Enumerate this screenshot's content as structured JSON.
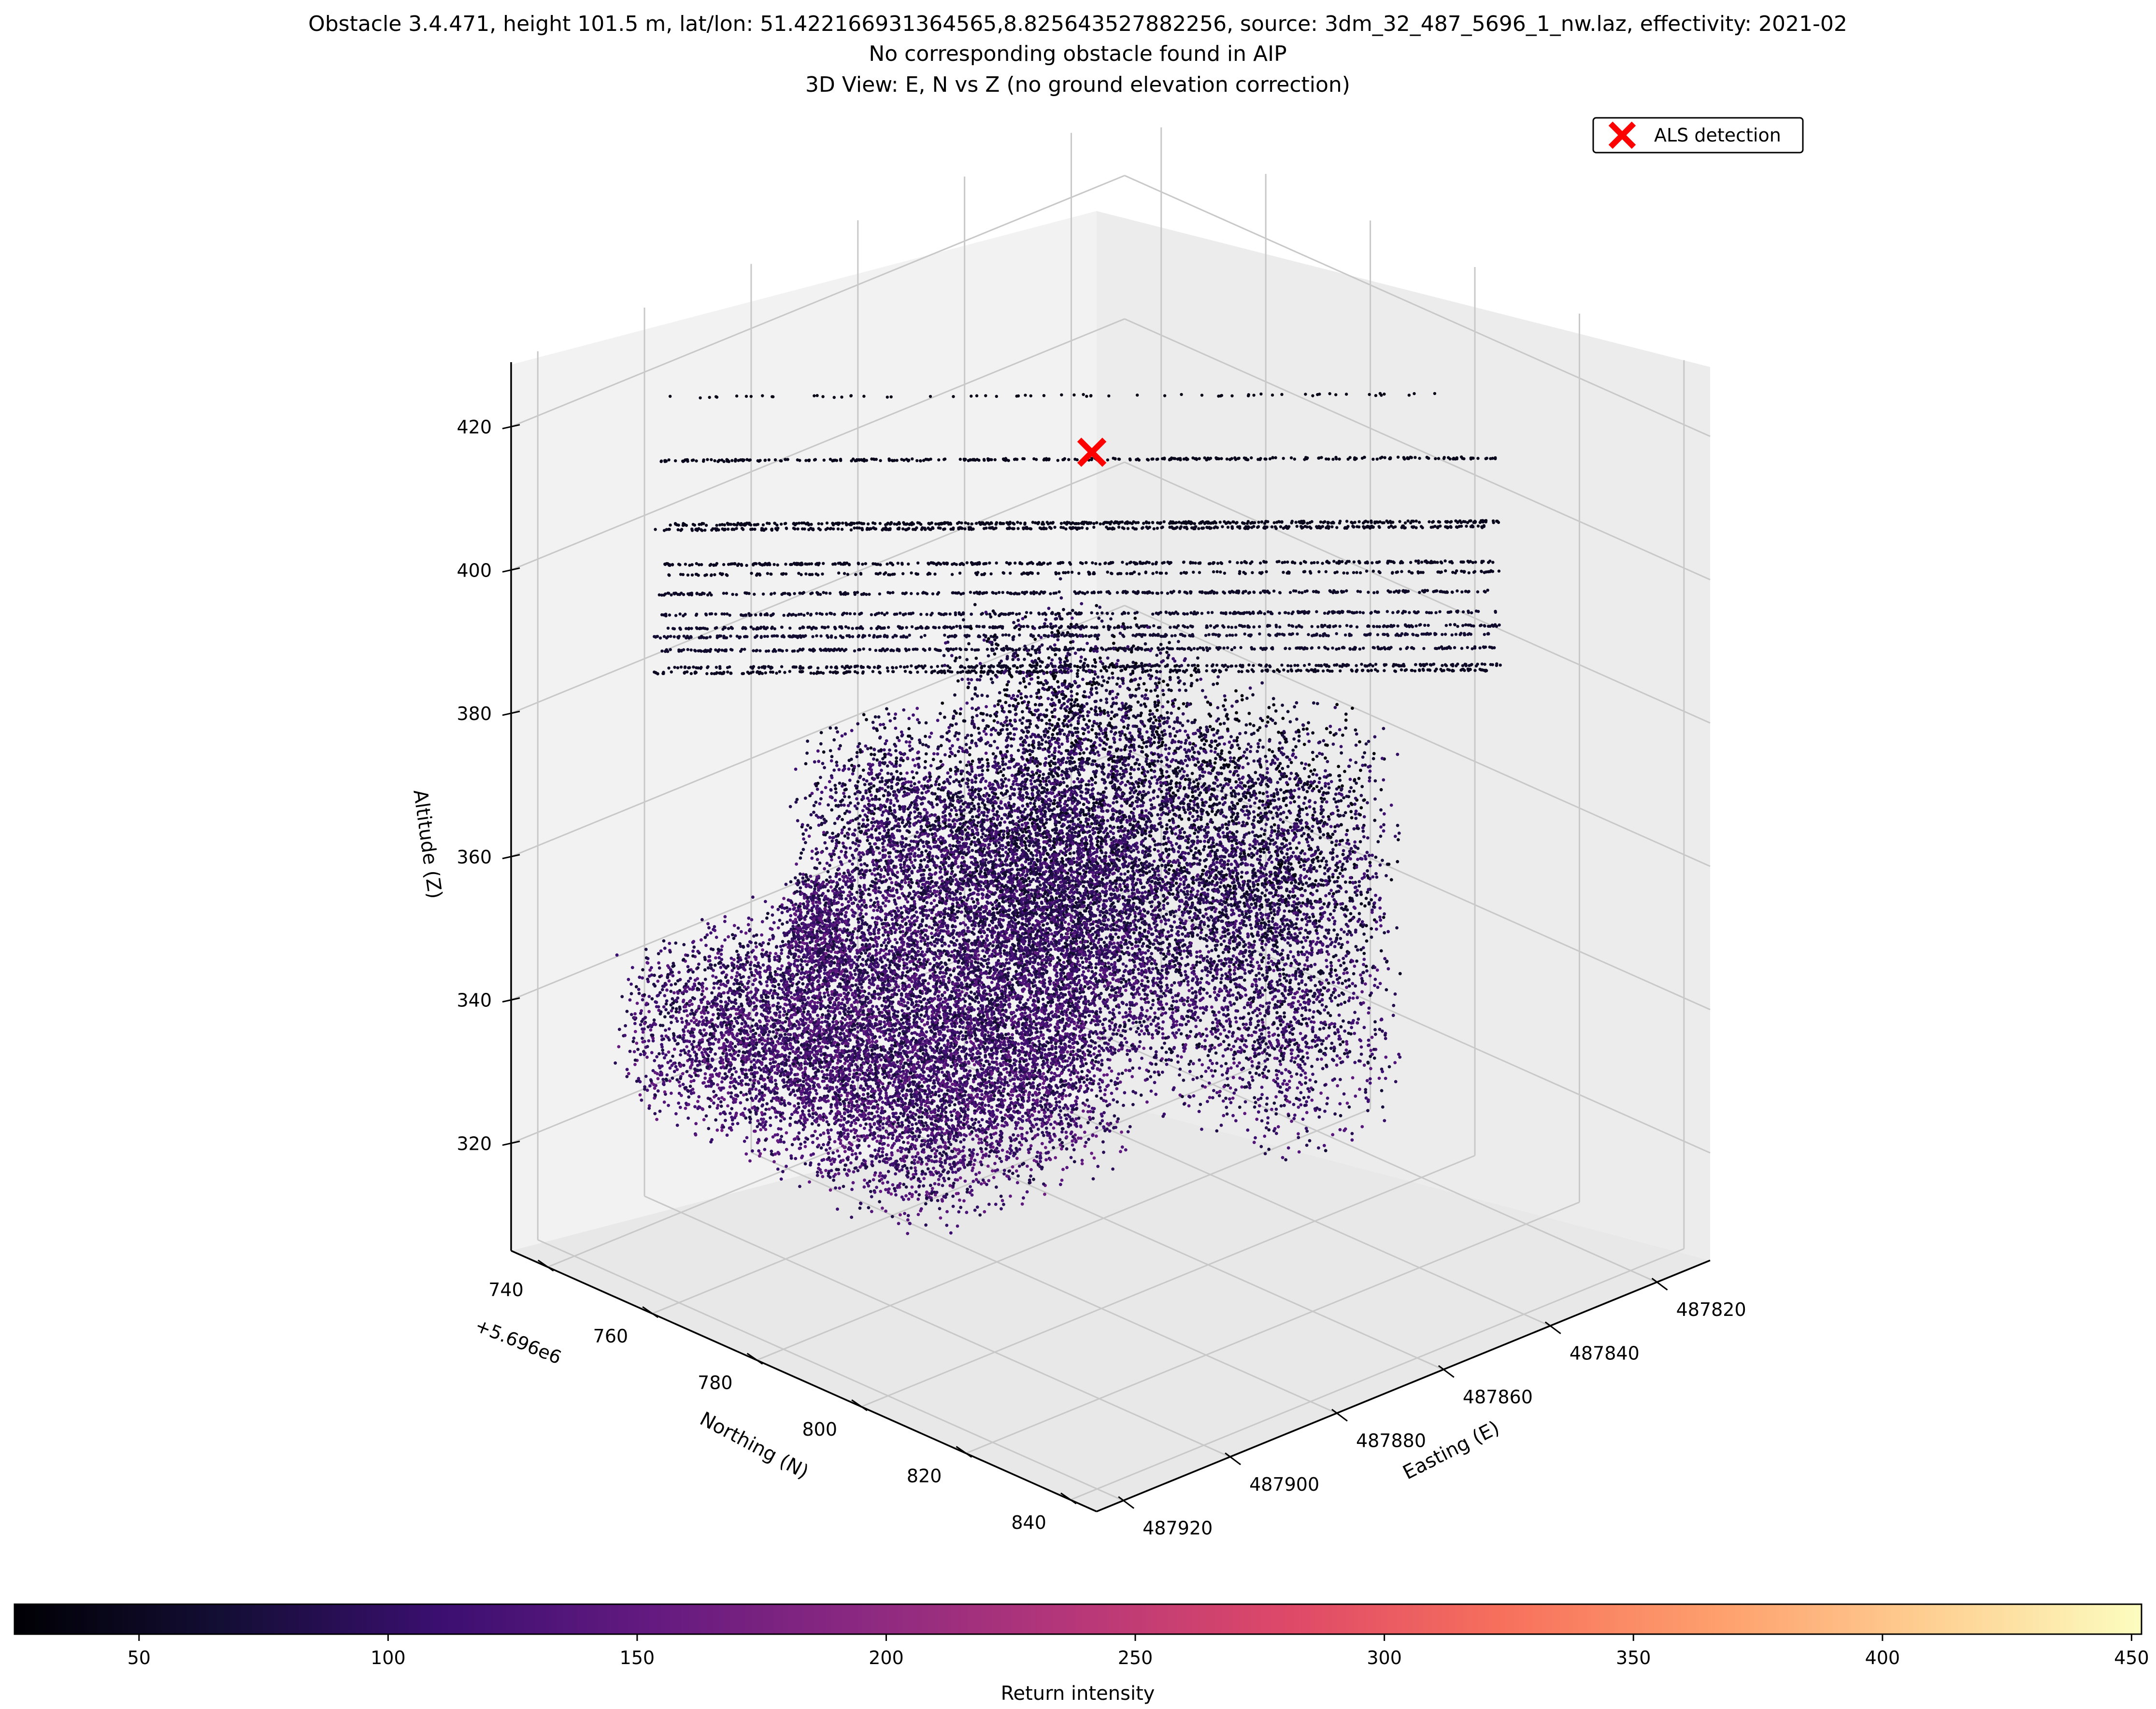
{
  "chart_data": {
    "type": "scatter",
    "projection": "3d",
    "title": [
      "Obstacle 3.4.471, height 101.5 m, lat/lon: 51.422166931364565,8.825643527882256, source: 3dm_32_487_5696_1_nw.laz, effectivity: 2021-02",
      "No corresponding obstacle found in AIP",
      "3D View: E, N vs Z (no ground elevation correction)"
    ],
    "xlabel": "Easting (E)",
    "ylabel": "Northing (N)",
    "zlabel": "Altitude (Z)",
    "y_offset_label": "+5.696e6",
    "x_ticks": [
      487820,
      487840,
      487860,
      487880,
      487900,
      487920
    ],
    "y_ticks": [
      740,
      760,
      780,
      800,
      820,
      840
    ],
    "z_ticks": [
      320,
      340,
      360,
      380,
      400,
      420
    ],
    "xlim": [
      487810,
      487925
    ],
    "ylim": [
      733,
      845
    ],
    "zlim": [
      305,
      429
    ],
    "grid": true,
    "colormap": "magma",
    "colorbar": {
      "label": "Return intensity",
      "range": [
        25,
        452
      ],
      "ticks": [
        50,
        100,
        150,
        200,
        250,
        300,
        350,
        400,
        450
      ],
      "orientation": "horizontal",
      "placement": "bottom"
    },
    "legend": {
      "entries": [
        "ALS detection"
      ],
      "placement": "top-right"
    },
    "detection": {
      "name": "ALS detection",
      "color": "#ff0000",
      "marker": "x",
      "x": 487872,
      "y": 790,
      "z": 418.8
    },
    "point_cloud": {
      "description_of_groups": "wire lines at altitude and vegetation canopy below",
      "wires": [
        {
          "z": 421.0,
          "intensity": 40,
          "density": 0.08
        },
        {
          "z": 412.5,
          "intensity": 45,
          "density": 0.5
        },
        {
          "z": 404.0,
          "intensity": 45,
          "density": 0.7
        },
        {
          "z": 402.5,
          "intensity": 48,
          "density": 0.6
        },
        {
          "z": 398.0,
          "intensity": 50,
          "density": 0.55
        },
        {
          "z": 397.0,
          "intensity": 50,
          "density": 0.3
        },
        {
          "z": 393.5,
          "intensity": 55,
          "density": 0.5
        },
        {
          "z": 391.0,
          "intensity": 60,
          "density": 0.45
        },
        {
          "z": 389.5,
          "intensity": 60,
          "density": 0.5
        },
        {
          "z": 387.5,
          "intensity": 65,
          "density": 0.5
        },
        {
          "z": 386.0,
          "intensity": 60,
          "density": 0.55
        },
        {
          "z": 384.0,
          "intensity": 55,
          "density": 0.5
        },
        {
          "z": 382.5,
          "intensity": 50,
          "density": 0.45
        }
      ],
      "canopy": [
        {
          "x0": 487835,
          "x1": 487858,
          "y0": 745,
          "y1": 812,
          "ztop": 377,
          "zbot": 320,
          "intensity": 110,
          "count": 9000
        },
        {
          "x0": 487858,
          "x1": 487880,
          "y0": 740,
          "y1": 790,
          "ztop": 366,
          "zbot": 328,
          "intensity": 115,
          "count": 5500
        },
        {
          "x0": 487878,
          "x1": 487918,
          "y0": 745,
          "y1": 805,
          "ztop": 349,
          "zbot": 326,
          "intensity": 120,
          "count": 8000
        },
        {
          "x0": 487887,
          "x1": 487893,
          "y0": 752,
          "y1": 760,
          "ztop": 354,
          "zbot": 340,
          "intensity": 120,
          "count": 400
        }
      ]
    }
  }
}
